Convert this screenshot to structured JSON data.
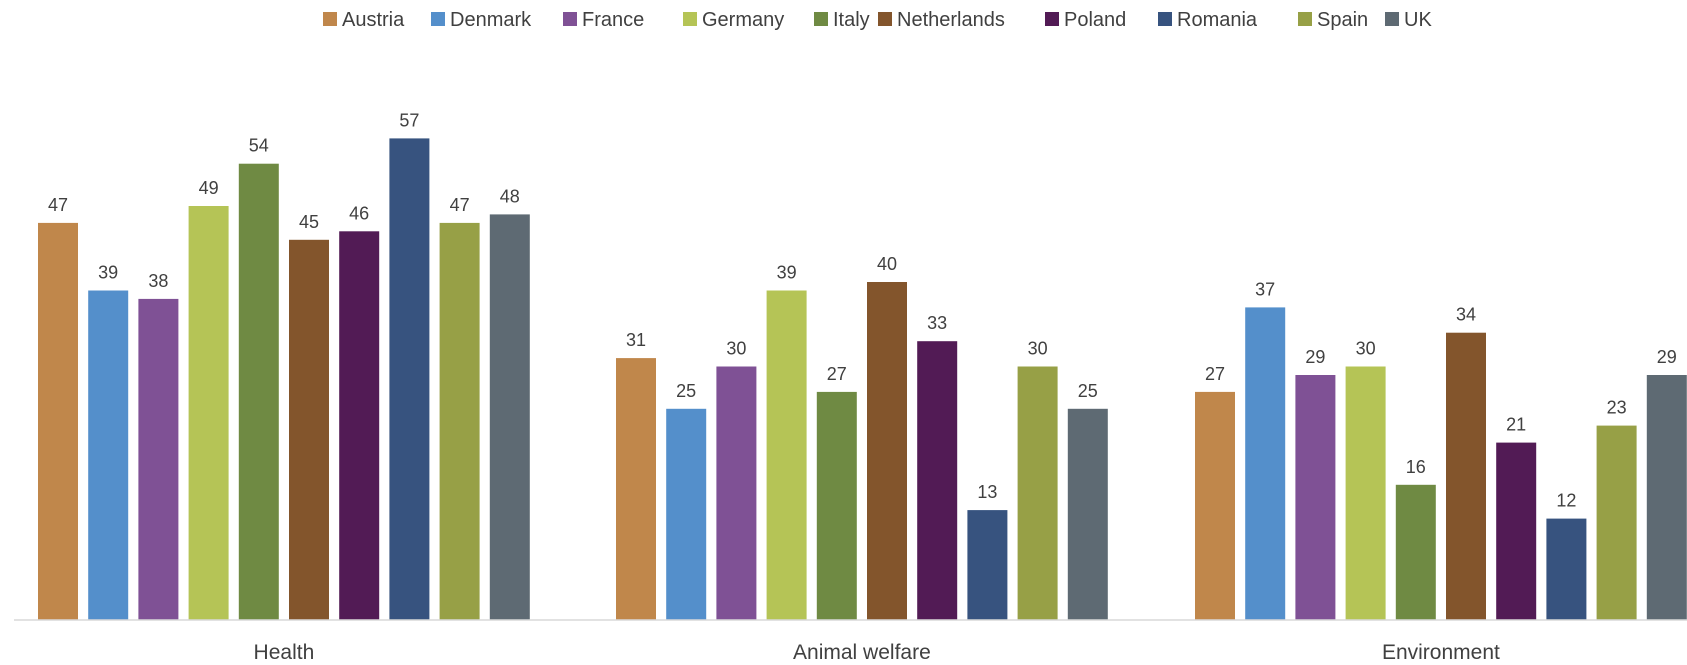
{
  "chart_data": {
    "type": "bar",
    "categories": [
      "Health",
      "Animal welfare",
      "Environment"
    ],
    "series": [
      {
        "name": "Austria",
        "color": "#c0874b",
        "values": [
          47,
          31,
          27
        ]
      },
      {
        "name": "Denmark",
        "color": "#548fcb",
        "values": [
          39,
          25,
          37
        ]
      },
      {
        "name": "France",
        "color": "#7f5195",
        "values": [
          38,
          30,
          29
        ]
      },
      {
        "name": "Germany",
        "color": "#b5c456",
        "values": [
          49,
          39,
          30
        ]
      },
      {
        "name": "Italy",
        "color": "#6f8a43",
        "values": [
          54,
          27,
          16
        ]
      },
      {
        "name": "Netherlands",
        "color": "#83552c",
        "values": [
          45,
          40,
          34
        ]
      },
      {
        "name": "Poland",
        "color": "#521b55",
        "values": [
          46,
          33,
          21
        ]
      },
      {
        "name": "Romania",
        "color": "#37537f",
        "values": [
          57,
          13,
          12
        ]
      },
      {
        "name": "Spain",
        "color": "#97a046",
        "values": [
          47,
          30,
          23
        ]
      },
      {
        "name": "UK",
        "color": "#5e6a73",
        "values": [
          48,
          25,
          29
        ]
      }
    ],
    "ylim": [
      0,
      60
    ],
    "grid": false,
    "legend": "top",
    "data_labels": true
  }
}
